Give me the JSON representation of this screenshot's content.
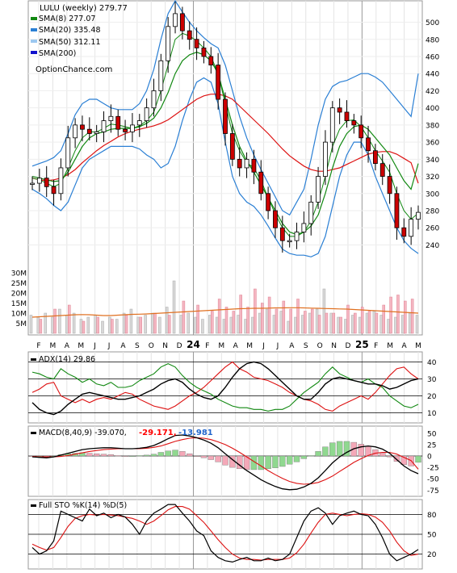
{
  "chart_data": {
    "type": "line",
    "title": "LULU (weekly) 279.77",
    "watermark": "OptionChance.com",
    "x_months": [
      "F",
      "M",
      "A",
      "M",
      "J",
      "J",
      "A",
      "S",
      "O",
      "N",
      "D",
      "24",
      "F",
      "M",
      "A",
      "M",
      "J",
      "J",
      "A",
      "S",
      "O",
      "N",
      "D",
      "25",
      "F",
      "M",
      "A",
      "M"
    ],
    "price_panel": {
      "ylim": [
        215,
        525
      ],
      "yticks": [
        240,
        260,
        280,
        300,
        320,
        340,
        360,
        380,
        400,
        420,
        440,
        460,
        480,
        500
      ],
      "volume_ticks": [
        "30M",
        "25M",
        "20M",
        "15M",
        "10M",
        "5M"
      ],
      "legend": [
        {
          "label": "SMA(8) 277.07",
          "color": "#118811"
        },
        {
          "label": "SMA(20) 335.48",
          "color": "#2a7fd4"
        },
        {
          "label": "SMA(50) 312.11",
          "color": "#9cc8f0"
        },
        {
          "label": "SMA(200)",
          "color": "#1111cc"
        }
      ],
      "closes": [
        312,
        318,
        308,
        300,
        330,
        365,
        380,
        375,
        370,
        372,
        385,
        390,
        375,
        372,
        380,
        385,
        400,
        420,
        455,
        495,
        510,
        490,
        480,
        470,
        460,
        450,
        410,
        370,
        340,
        330,
        340,
        325,
        300,
        280,
        260,
        245,
        245,
        255,
        265,
        290,
        320,
        360,
        400,
        395,
        385,
        380,
        365,
        350,
        335,
        320,
        300,
        260,
        250,
        270,
        278
      ],
      "sma8": [
        318,
        316,
        312,
        308,
        312,
        330,
        350,
        365,
        372,
        372,
        376,
        381,
        380,
        378,
        376,
        379,
        385,
        395,
        420,
        450,
        480,
        487,
        484,
        478,
        470,
        460,
        440,
        405,
        370,
        350,
        336,
        330,
        315,
        295,
        276,
        260,
        250,
        250,
        255,
        268,
        290,
        320,
        355,
        375,
        385,
        386,
        378,
        365,
        350,
        338,
        325,
        300,
        280,
        270,
        277
      ],
      "sma20": [
        320,
        318,
        316,
        314,
        315,
        325,
        340,
        355,
        365,
        370,
        372,
        375,
        376,
        376,
        376,
        378,
        382,
        388,
        400,
        418,
        440,
        455,
        462,
        465,
        462,
        455,
        440,
        410,
        380,
        355,
        338,
        325,
        310,
        295,
        280,
        265,
        255,
        252,
        255,
        262,
        275,
        300,
        330,
        355,
        370,
        378,
        380,
        375,
        365,
        355,
        345,
        330,
        315,
        305,
        335
      ],
      "sma20_upper": [
        332,
        335,
        338,
        342,
        350,
        370,
        392,
        405,
        410,
        410,
        405,
        400,
        398,
        398,
        398,
        405,
        420,
        445,
        480,
        510,
        525,
        512,
        500,
        490,
        482,
        475,
        470,
        450,
        420,
        390,
        365,
        345,
        328,
        312,
        296,
        280,
        275,
        290,
        305,
        340,
        380,
        410,
        425,
        430,
        432,
        436,
        440,
        440,
        436,
        430,
        420,
        410,
        400,
        390,
        440
      ],
      "sma20_lower": [
        305,
        300,
        294,
        286,
        280,
        290,
        310,
        330,
        340,
        345,
        350,
        355,
        355,
        355,
        355,
        352,
        345,
        340,
        330,
        335,
        355,
        385,
        410,
        430,
        435,
        430,
        405,
        360,
        320,
        300,
        290,
        285,
        275,
        262,
        248,
        235,
        230,
        228,
        228,
        226,
        230,
        250,
        285,
        320,
        345,
        360,
        360,
        345,
        320,
        300,
        280,
        260,
        245,
        236,
        230
      ],
      "sma50": [
        318,
        316,
        315,
        316,
        318,
        322,
        328,
        336,
        343,
        350,
        356,
        361,
        366,
        370,
        373,
        375,
        377,
        379,
        382,
        386,
        392,
        398,
        404,
        410,
        414,
        416,
        416,
        414,
        410,
        402,
        394,
        386,
        378,
        370,
        361,
        352,
        344,
        338,
        332,
        328,
        326,
        326,
        328,
        330,
        334,
        338,
        342,
        346,
        348,
        349,
        349,
        346,
        341,
        336,
        312
      ],
      "volume_gray": [
        9,
        8,
        10,
        8,
        12,
        9,
        10,
        7,
        8,
        9,
        6,
        8,
        7,
        10,
        12,
        8,
        9,
        10,
        8,
        13,
        26,
        9,
        10,
        8,
        7,
        9,
        8,
        7,
        8,
        9,
        7,
        8,
        10,
        12,
        9,
        11,
        6,
        8,
        9,
        10,
        12,
        22,
        10,
        8,
        7,
        9,
        8,
        10,
        11,
        9,
        7,
        8,
        9,
        10,
        9
      ],
      "volume_pink": [
        0,
        7,
        0,
        12,
        0,
        14,
        0,
        6,
        0,
        8,
        0,
        7,
        0,
        9,
        0,
        8,
        0,
        10,
        0,
        9,
        0,
        16,
        0,
        14,
        0,
        11,
        17,
        13,
        11,
        19,
        13,
        22,
        15,
        18,
        12,
        16,
        12,
        17,
        11,
        12,
        9,
        10,
        10,
        8,
        14,
        10,
        13,
        11,
        10,
        14,
        18,
        19,
        16,
        17,
        0
      ],
      "volume_avg": [
        8,
        8.2,
        8.4,
        8.6,
        8.8,
        9,
        9.2,
        9.3,
        9.2,
        9,
        8.8,
        8.8,
        9,
        9.2,
        9.4,
        9.5,
        9.6,
        9.8,
        10,
        10.2,
        10.4,
        10.6,
        10.8,
        11,
        11.2,
        11.4,
        11.6,
        11.8,
        12,
        12.2,
        12.3,
        12.4,
        12.4,
        12.5,
        12.6,
        12.6,
        12.7,
        12.7,
        12.6,
        12.5,
        12.4,
        12.3,
        12.2,
        12.1,
        12,
        11.8,
        11.6,
        11.4,
        11.2,
        11,
        10.8,
        10.6,
        10.4,
        10.2,
        10
      ]
    },
    "adx_panel": {
      "label": "ADX(14) 29.86",
      "ylim": [
        5,
        45
      ],
      "yticks": [
        10,
        20,
        30,
        40
      ],
      "adx": [
        16,
        12,
        10,
        9,
        11,
        15,
        18,
        21,
        22,
        21,
        20,
        19,
        18,
        18,
        19,
        20,
        22,
        24,
        27,
        29,
        30,
        28,
        24,
        21,
        19,
        18,
        20,
        25,
        31,
        36,
        39,
        40,
        39,
        36,
        32,
        28,
        24,
        20,
        18,
        18,
        22,
        27,
        30,
        31,
        30,
        29,
        28,
        27,
        27,
        26,
        24,
        25,
        27,
        29,
        30
      ],
      "plus_di": [
        34,
        33,
        31,
        30,
        36,
        33,
        31,
        28,
        30,
        27,
        26,
        28,
        25,
        25,
        26,
        29,
        31,
        33,
        37,
        39,
        37,
        32,
        28,
        25,
        23,
        21,
        18,
        16,
        14,
        13,
        13,
        12,
        12,
        11,
        12,
        12,
        14,
        18,
        22,
        25,
        28,
        33,
        37,
        33,
        31,
        29,
        28,
        30,
        27,
        25,
        20,
        17,
        14,
        13,
        15
      ],
      "minus_di": [
        22,
        24,
        27,
        28,
        20,
        18,
        16,
        18,
        16,
        18,
        19,
        18,
        20,
        22,
        21,
        18,
        16,
        14,
        13,
        12,
        14,
        17,
        20,
        22,
        25,
        29,
        33,
        37,
        40,
        36,
        34,
        31,
        30,
        29,
        27,
        25,
        22,
        20,
        18,
        17,
        15,
        12,
        11,
        14,
        16,
        18,
        20,
        18,
        22,
        27,
        32,
        36,
        37,
        33,
        30
      ]
    },
    "macd_panel": {
      "label": "MACD(8,40,9) -39.070,",
      "signal_value": "-29.171,",
      "hist_value": "-13.981",
      "ylim": [
        -85,
        62
      ],
      "yticks": [
        50,
        25,
        0,
        -25,
        -50,
        -75
      ],
      "macd": [
        -2,
        -3,
        -4,
        -2,
        2,
        6,
        10,
        14,
        16,
        17,
        18,
        18,
        17,
        16,
        16,
        17,
        19,
        23,
        30,
        38,
        45,
        46,
        44,
        40,
        35,
        28,
        18,
        5,
        -8,
        -20,
        -32,
        -42,
        -52,
        -60,
        -67,
        -72,
        -74,
        -73,
        -68,
        -60,
        -48,
        -32,
        -15,
        -2,
        8,
        16,
        20,
        22,
        20,
        15,
        6,
        -8,
        -22,
        -32,
        -39
      ],
      "signal": [
        -1,
        -2,
        -2,
        -2,
        -1,
        1,
        4,
        7,
        10,
        12,
        14,
        15,
        16,
        16,
        16,
        16,
        17,
        19,
        22,
        27,
        32,
        36,
        39,
        40,
        39,
        36,
        31,
        25,
        17,
        8,
        -2,
        -12,
        -22,
        -32,
        -41,
        -49,
        -56,
        -60,
        -62,
        -61,
        -58,
        -52,
        -44,
        -34,
        -24,
        -14,
        -6,
        1,
        6,
        8,
        8,
        4,
        -3,
        -10,
        -29
      ],
      "hist": [
        -1,
        -1,
        -2,
        0,
        3,
        5,
        6,
        7,
        6,
        5,
        4,
        3,
        1,
        0,
        0,
        1,
        2,
        4,
        8,
        11,
        13,
        10,
        5,
        0,
        -4,
        -8,
        -13,
        -20,
        -25,
        -28,
        -30,
        -30,
        -30,
        -28,
        -26,
        -23,
        -18,
        -13,
        -6,
        1,
        10,
        20,
        29,
        32,
        32,
        30,
        26,
        21,
        14,
        7,
        -2,
        -12,
        -19,
        -22,
        -14
      ]
    },
    "sto_panel": {
      "label": "Full STO %K(14) %D(5)",
      "ylim": [
        0,
        100
      ],
      "yticks": [
        80,
        50,
        20
      ],
      "k": [
        30,
        20,
        25,
        40,
        85,
        80,
        75,
        70,
        88,
        78,
        82,
        75,
        80,
        76,
        65,
        50,
        70,
        82,
        88,
        95,
        95,
        82,
        70,
        55,
        48,
        25,
        15,
        10,
        8,
        12,
        15,
        10,
        10,
        14,
        10,
        12,
        20,
        45,
        70,
        85,
        90,
        82,
        65,
        78,
        82,
        85,
        80,
        78,
        65,
        45,
        20,
        10,
        15,
        20,
        27
      ],
      "d": [
        35,
        30,
        26,
        30,
        45,
        62,
        74,
        78,
        80,
        79,
        80,
        79,
        78,
        76,
        74,
        70,
        65,
        70,
        78,
        87,
        92,
        92,
        88,
        78,
        68,
        55,
        42,
        30,
        20,
        14,
        12,
        12,
        11,
        12,
        12,
        12,
        14,
        22,
        35,
        52,
        68,
        80,
        82,
        80,
        78,
        80,
        81,
        80,
        76,
        68,
        55,
        38,
        25,
        18,
        20
      ]
    }
  }
}
